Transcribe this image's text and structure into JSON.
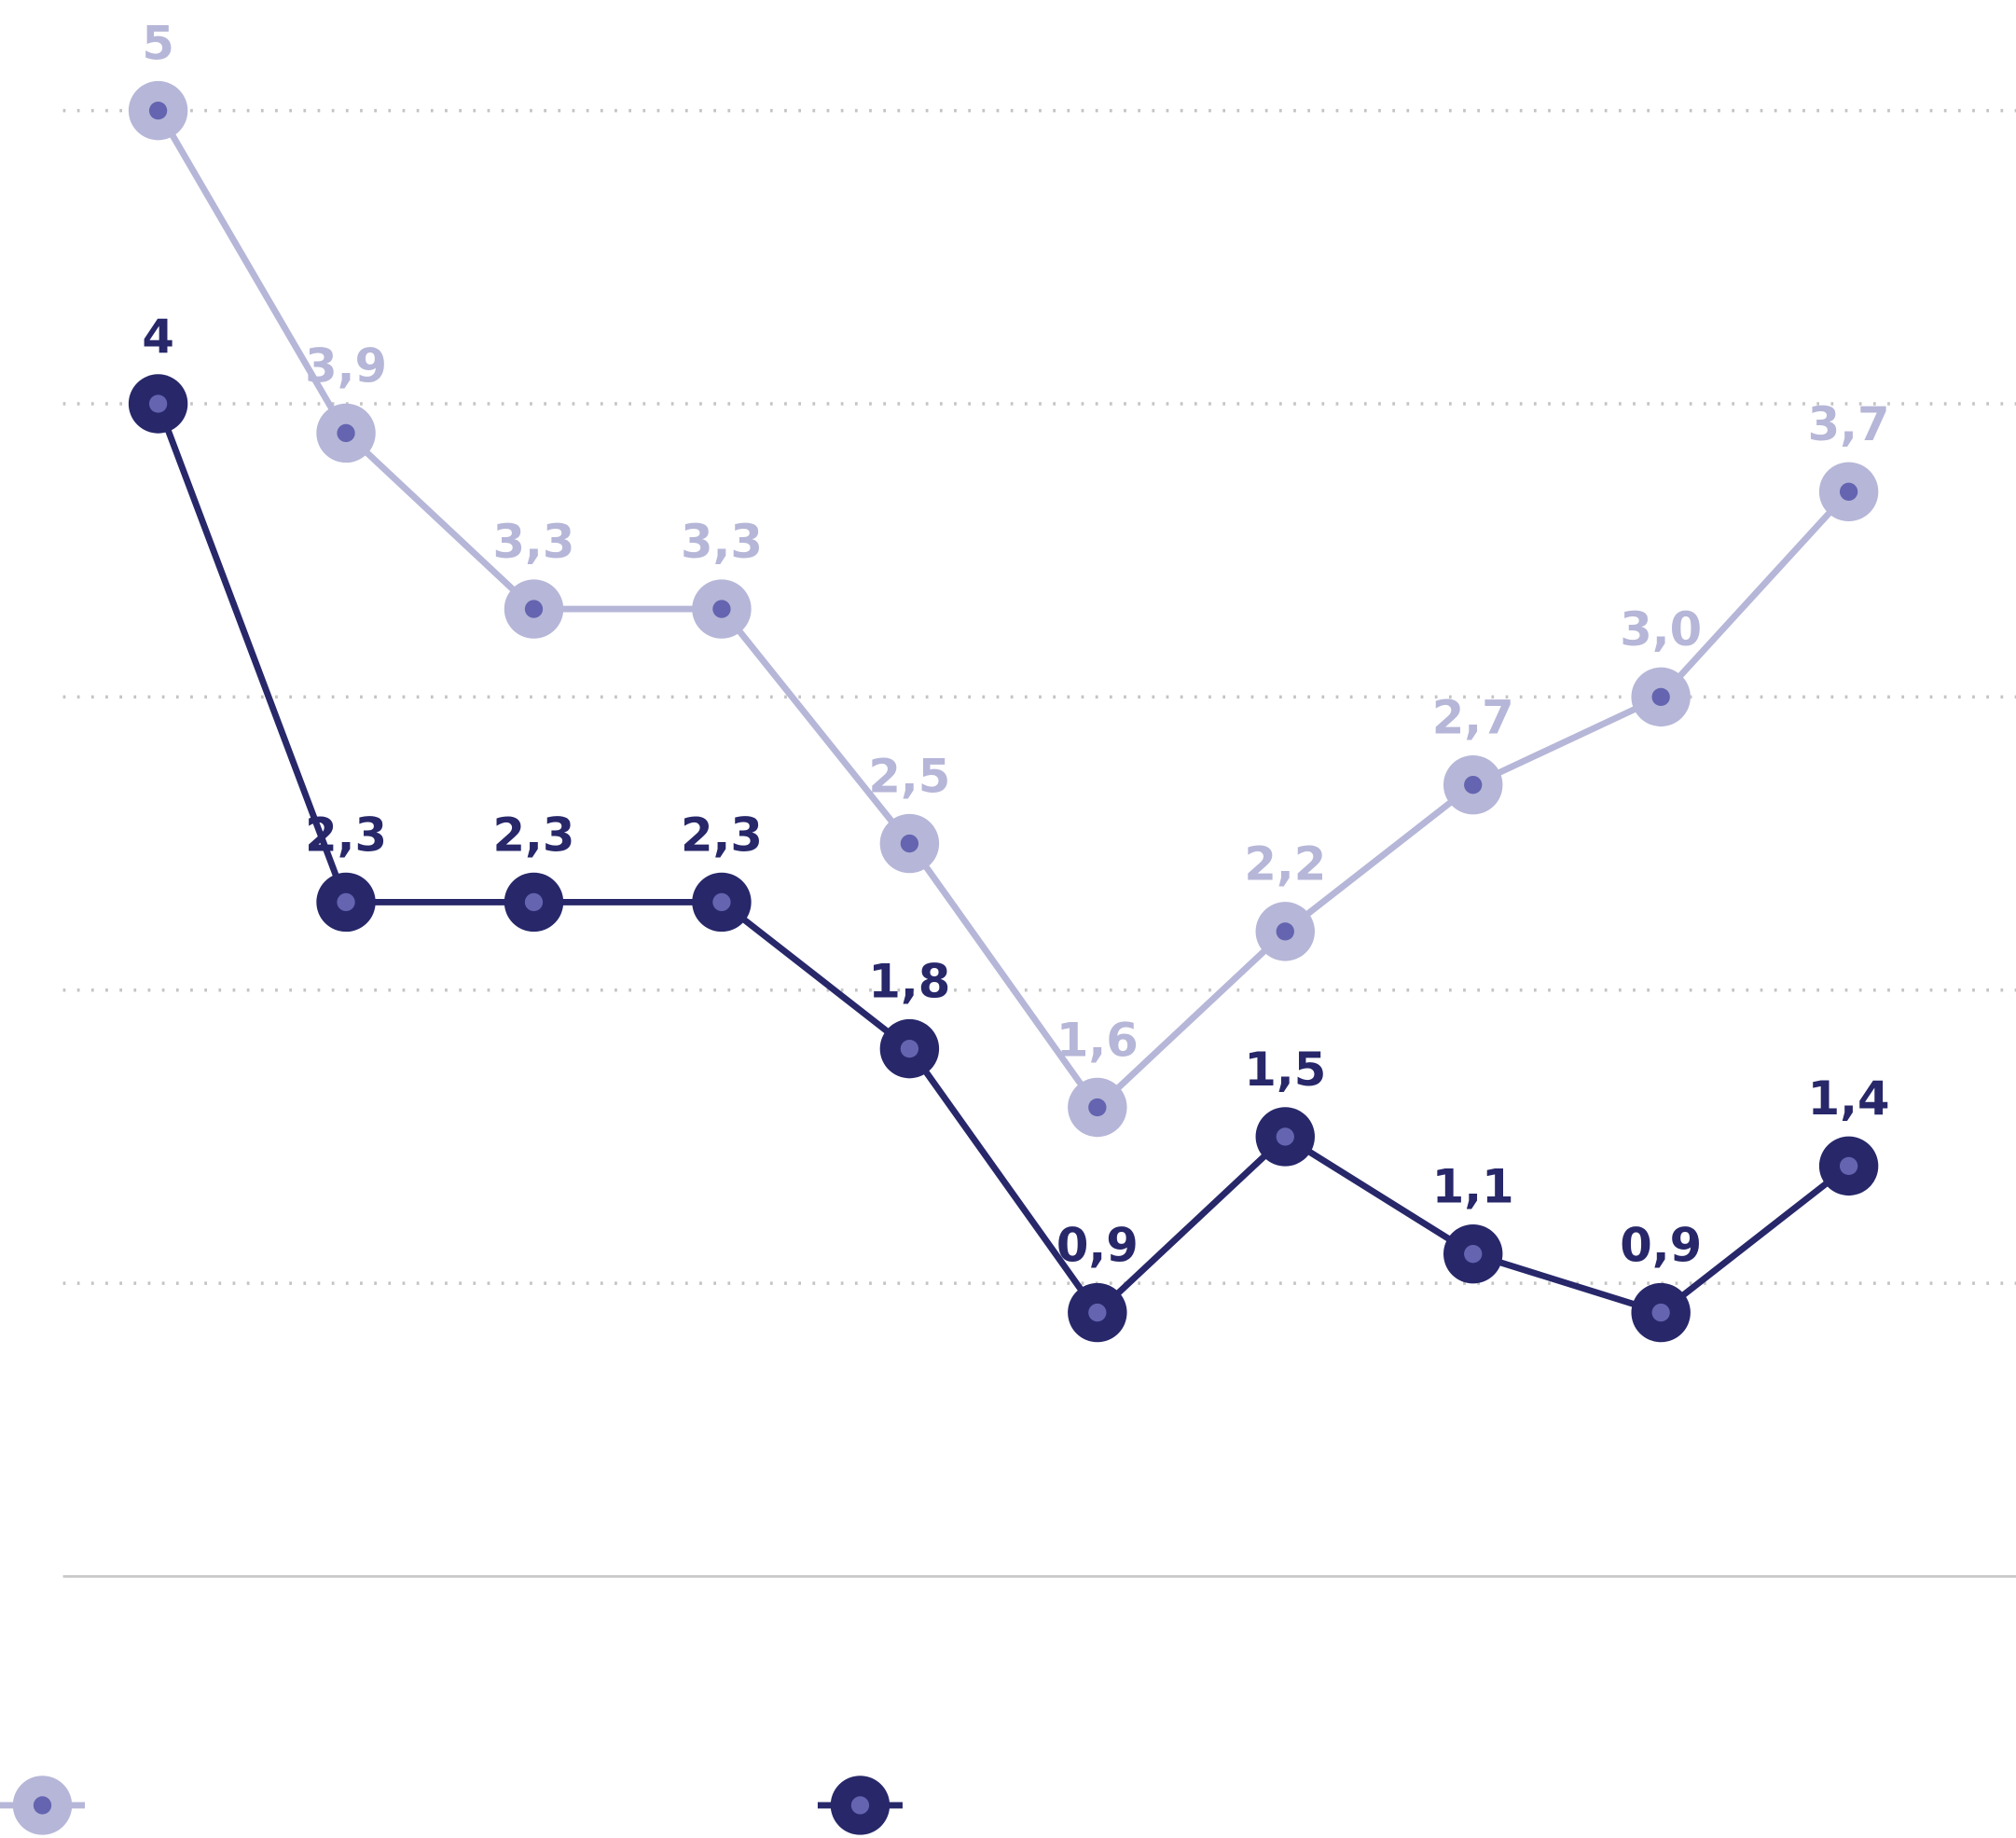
{
  "chart_data": {
    "type": "line",
    "categories": [
      null,
      null,
      null,
      null,
      null,
      null,
      null,
      null,
      null,
      null
    ],
    "series": [
      {
        "color": "#b6b6d8",
        "values": [
          5,
          3.9,
          3.3,
          3.3,
          2.5,
          1.6,
          2.2,
          2.7,
          3.0,
          3.7
        ],
        "value_labels": [
          "5",
          "3,9",
          "3,3",
          "3,3",
          "2,5",
          "1,6",
          "2,2",
          "2,7",
          "3,0",
          "3,7"
        ]
      },
      {
        "color": "#27276a",
        "values": [
          4,
          2.3,
          2.3,
          2.3,
          1.8,
          0.9,
          1.5,
          1.1,
          0.9,
          1.4
        ],
        "value_labels": [
          "4",
          "2,3",
          "2,3",
          "2,3",
          "1,8",
          "0,9",
          "1,5",
          "1,1",
          "0,9",
          "1,4"
        ]
      }
    ],
    "ylim": [
      0,
      5
    ],
    "yticks": [
      0,
      1,
      2,
      3,
      4,
      5
    ],
    "grid": true,
    "legend": "bottom"
  }
}
